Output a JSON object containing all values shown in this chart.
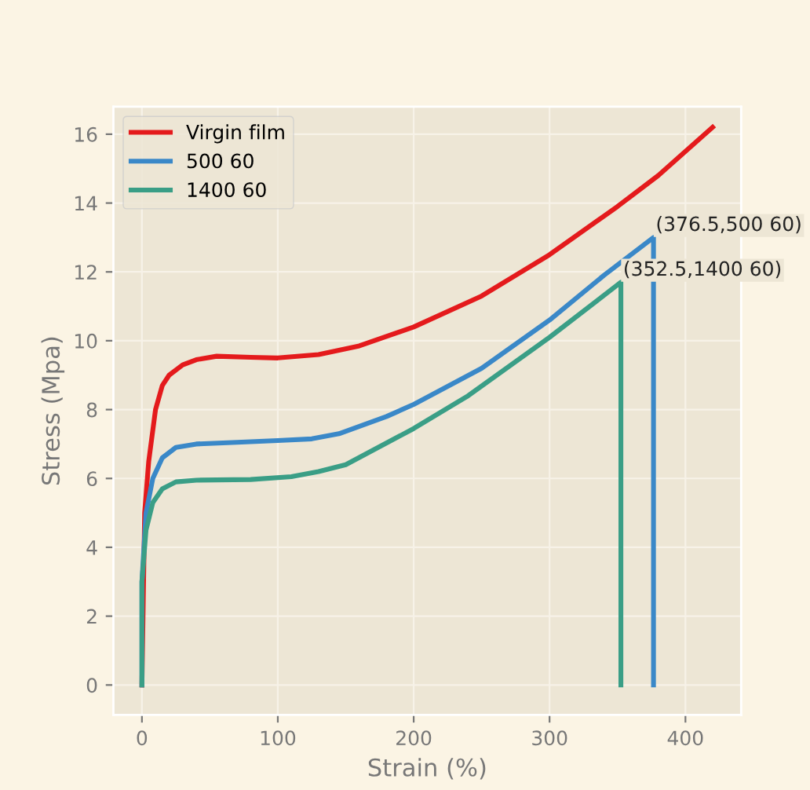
{
  "chart_data": {
    "type": "line",
    "xlabel": "Strain (%)",
    "ylabel": "Stress (Mpa)",
    "xlim": [
      -21,
      441
    ],
    "ylim": [
      -0.87,
      16.8
    ],
    "xticks": [
      0,
      100,
      200,
      300,
      400
    ],
    "yticks": [
      0,
      2,
      4,
      6,
      8,
      10,
      12,
      14,
      16
    ],
    "grid": true,
    "legend": "top left",
    "marker": "none",
    "line_style": "solid",
    "series": [
      {
        "name": "Virgin film",
        "color": "#e41a1c",
        "x": [
          0,
          2,
          5,
          10,
          15,
          20,
          30,
          40,
          55,
          80,
          100,
          130,
          160,
          200,
          250,
          300,
          350,
          380,
          420
        ],
        "values": [
          0,
          5,
          6.5,
          8,
          8.7,
          9.0,
          9.3,
          9.45,
          9.55,
          9.52,
          9.5,
          9.6,
          9.85,
          10.4,
          11.3,
          12.5,
          13.9,
          14.8,
          16.2
        ]
      },
      {
        "name": "500 60",
        "color": "#3a88c8",
        "x": [
          0,
          0,
          3,
          8,
          15,
          25,
          40,
          70,
          100,
          125,
          145,
          180,
          200,
          250,
          300,
          340,
          376.5,
          376.5
        ],
        "values": [
          0,
          3,
          5,
          6,
          6.6,
          6.9,
          7.0,
          7.05,
          7.1,
          7.15,
          7.3,
          7.8,
          8.15,
          9.2,
          10.6,
          11.9,
          13.0,
          0
        ]
      },
      {
        "name": "1400 60",
        "color": "#3a9e86",
        "x": [
          0,
          0,
          3,
          8,
          15,
          25,
          40,
          80,
          110,
          130,
          150,
          200,
          240,
          300,
          352.5,
          352.5
        ],
        "values": [
          0,
          3,
          4.5,
          5.3,
          5.7,
          5.9,
          5.95,
          5.97,
          6.05,
          6.2,
          6.4,
          7.45,
          8.4,
          10.1,
          11.7,
          0
        ]
      }
    ],
    "annotations": [
      {
        "text": "(376.5,500 60)",
        "x": 376.5,
        "y": 13.0
      },
      {
        "text": "(352.5,1400 60)",
        "x": 352.5,
        "y": 11.7
      }
    ]
  }
}
